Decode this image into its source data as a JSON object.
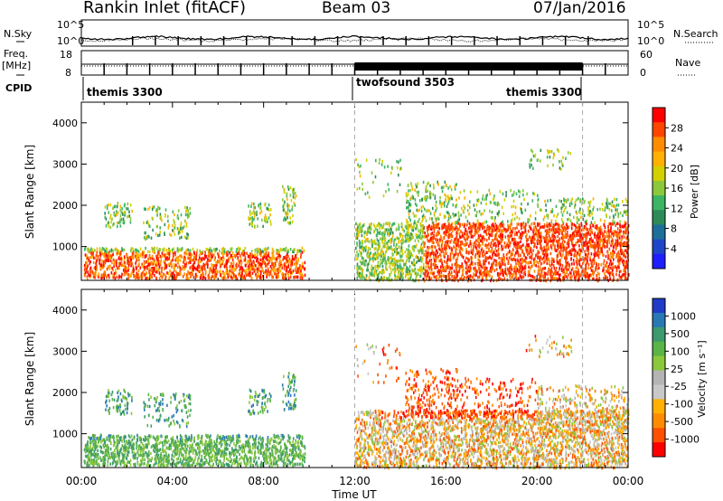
{
  "header": {
    "station": "Rankin Inlet (fitACF)",
    "beam": "Beam 03",
    "date": "07/Jan/2016"
  },
  "chart_data": [
    {
      "type": "line",
      "name": "noise-panel",
      "left_label": "N.Sky",
      "right_label": "N.Search",
      "left_ticks": [
        "10^5",
        "10^0"
      ],
      "right_ticks": [
        "10^5",
        "10^0"
      ]
    },
    {
      "type": "line",
      "name": "frequency-panel",
      "left_label": "Freq.",
      "left_unit": "[MHz]",
      "right_label": "Nave",
      "left_ticks": [
        "18",
        "8"
      ],
      "right_ticks": [
        "60",
        "0"
      ]
    },
    {
      "type": "table",
      "name": "cpid",
      "label": "CPID",
      "segments": [
        {
          "name": "themis 3300",
          "start_hour": 0,
          "end_hour": 12
        },
        {
          "name": "twofsound 3503",
          "start_hour": 12,
          "end_hour": 22
        },
        {
          "name": "themis 3300",
          "start_hour": 22,
          "end_hour": 24
        }
      ]
    },
    {
      "type": "heatmap",
      "name": "power-panel",
      "ylabel": "Slant Range [km]",
      "yticks": [
        1000,
        2000,
        3000,
        4000
      ],
      "ylim": [
        180,
        4500
      ],
      "colorbar_label": "Power [dB]",
      "colorbar_ticks": [
        "28",
        "24",
        "20",
        "16",
        "12",
        "8",
        "4"
      ],
      "colorbar_colors": [
        "#ff0000",
        "#ff4500",
        "#ff8c00",
        "#ffb000",
        "#d4d000",
        "#8cc83c",
        "#3cb464",
        "#2e8b57",
        "#1e6e9a",
        "#1e46c8",
        "#1e1eff"
      ]
    },
    {
      "type": "heatmap",
      "name": "velocity-panel",
      "ylabel": "Slant Range [km]",
      "yticks": [
        1000,
        2000,
        3000,
        4000
      ],
      "ylim": [
        180,
        4500
      ],
      "xlabel": "Time UT",
      "xticks": [
        "00:00",
        "04:00",
        "08:00",
        "12:00",
        "16:00",
        "20:00",
        "00:00"
      ],
      "xlim": [
        0,
        24
      ],
      "colorbar_label": "Velocity [m s⁻¹]",
      "colorbar_ticks": [
        "1000",
        "500",
        "100",
        "25",
        "-25",
        "-100",
        "-500",
        "-1000"
      ],
      "colorbar_colors": [
        "#1e3cc8",
        "#2878b4",
        "#3c9a6e",
        "#5ab446",
        "#8cc83c",
        "#b4b4b4",
        "#c8c8c8",
        "#ffb000",
        "#ff8c00",
        "#ff5000",
        "#ff0000"
      ]
    }
  ]
}
